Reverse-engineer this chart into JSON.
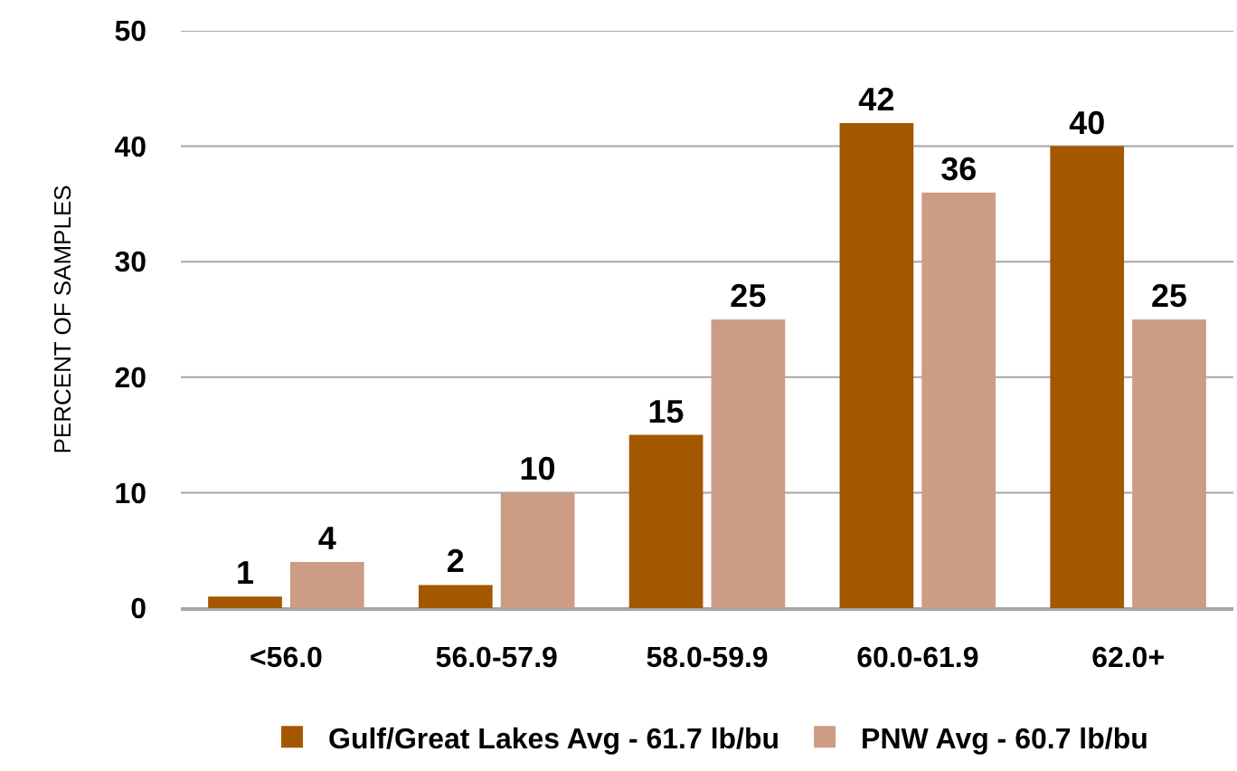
{
  "chart_data": {
    "type": "bar",
    "ylabel": "PERCENT OF SAMPLES",
    "categories": [
      "<56.0",
      "56.0-57.9",
      "58.0-59.9",
      "60.0-61.9",
      "62.0+"
    ],
    "series": [
      {
        "name": "Gulf/Great Lakes Avg - 61.7 lb/bu",
        "color": "#a35800",
        "values": [
          1,
          2,
          15,
          42,
          40
        ]
      },
      {
        "name": "PNW Avg - 60.7 lb/bu",
        "color": "#cc9c85",
        "values": [
          4,
          10,
          25,
          36,
          25
        ]
      }
    ],
    "ylim": [
      0,
      50
    ],
    "yticks": [
      0,
      10,
      20,
      30,
      40,
      50
    ],
    "grid": "y",
    "legend": "bottom",
    "data_labels": true
  }
}
